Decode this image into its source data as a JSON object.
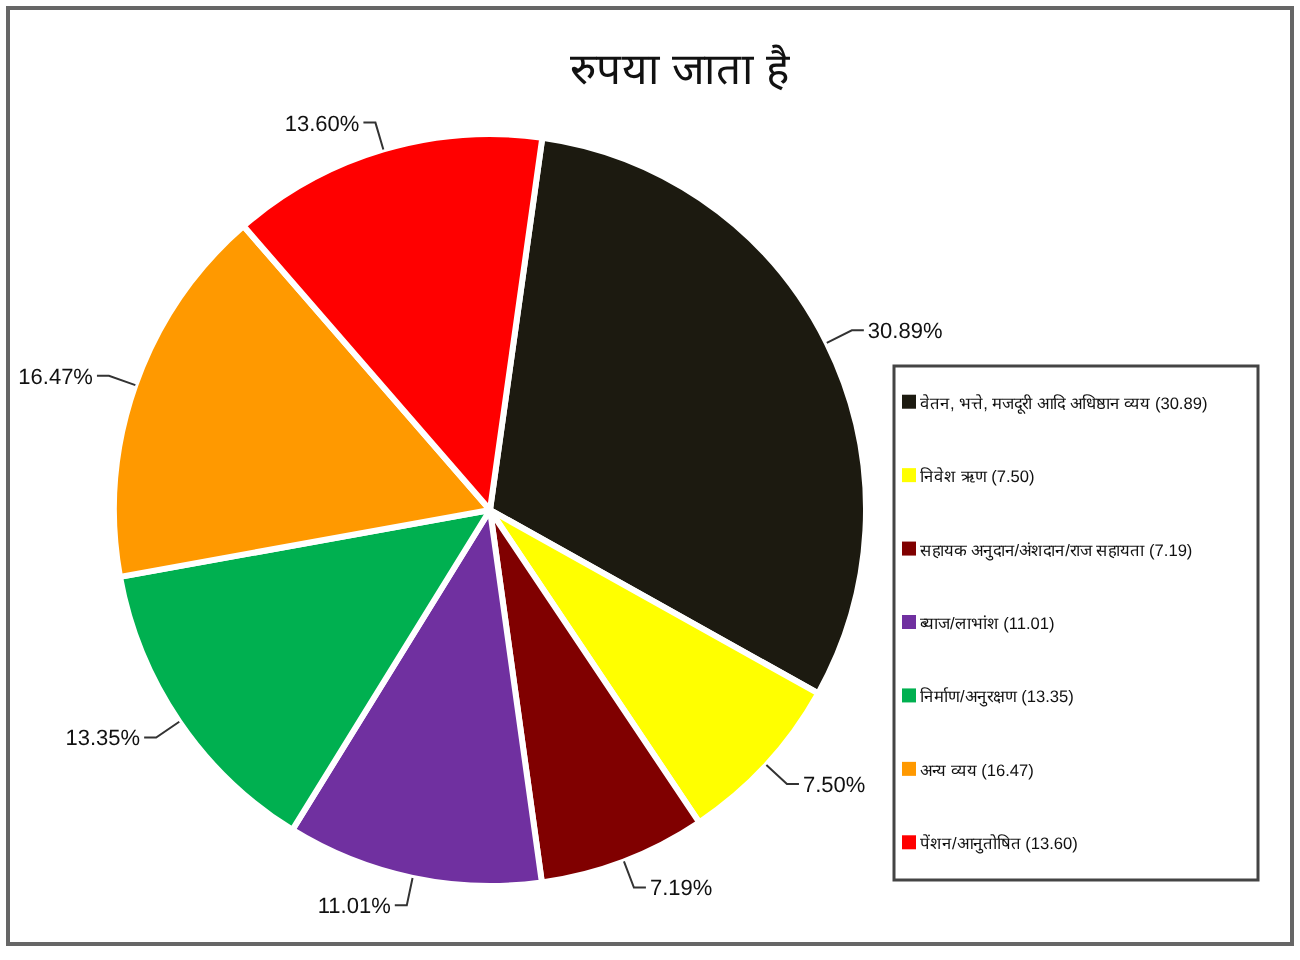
{
  "chart_data": {
    "type": "pie",
    "title": "रुपया जाता है",
    "categories": [
      "वेतन, भत्ते, मजदूरी आदि अधिष्ठान व्यय (30.89)",
      "निवेश ऋण (7.50)",
      "सहायक अनुदान/अंशदान/राज सहायता (7.19)",
      "ब्याज/लाभांश (11.01)",
      "निर्माण/अनुरक्षण (13.35)",
      "अन्य व्यय (16.47)",
      "पेंशन/आनुतोषित (13.60)"
    ],
    "values": [
      30.89,
      7.5,
      7.19,
      11.01,
      13.35,
      16.47,
      13.6
    ],
    "colors": [
      "#1c1a10",
      "#ffff00",
      "#800000",
      "#7030a0",
      "#00b050",
      "#ff9900",
      "#ff0000"
    ],
    "value_labels": [
      "30.89%",
      "7.50%",
      "7.19%",
      "11.01%",
      "13.35%",
      "16.47%",
      "13.60%"
    ],
    "legend": "right"
  }
}
